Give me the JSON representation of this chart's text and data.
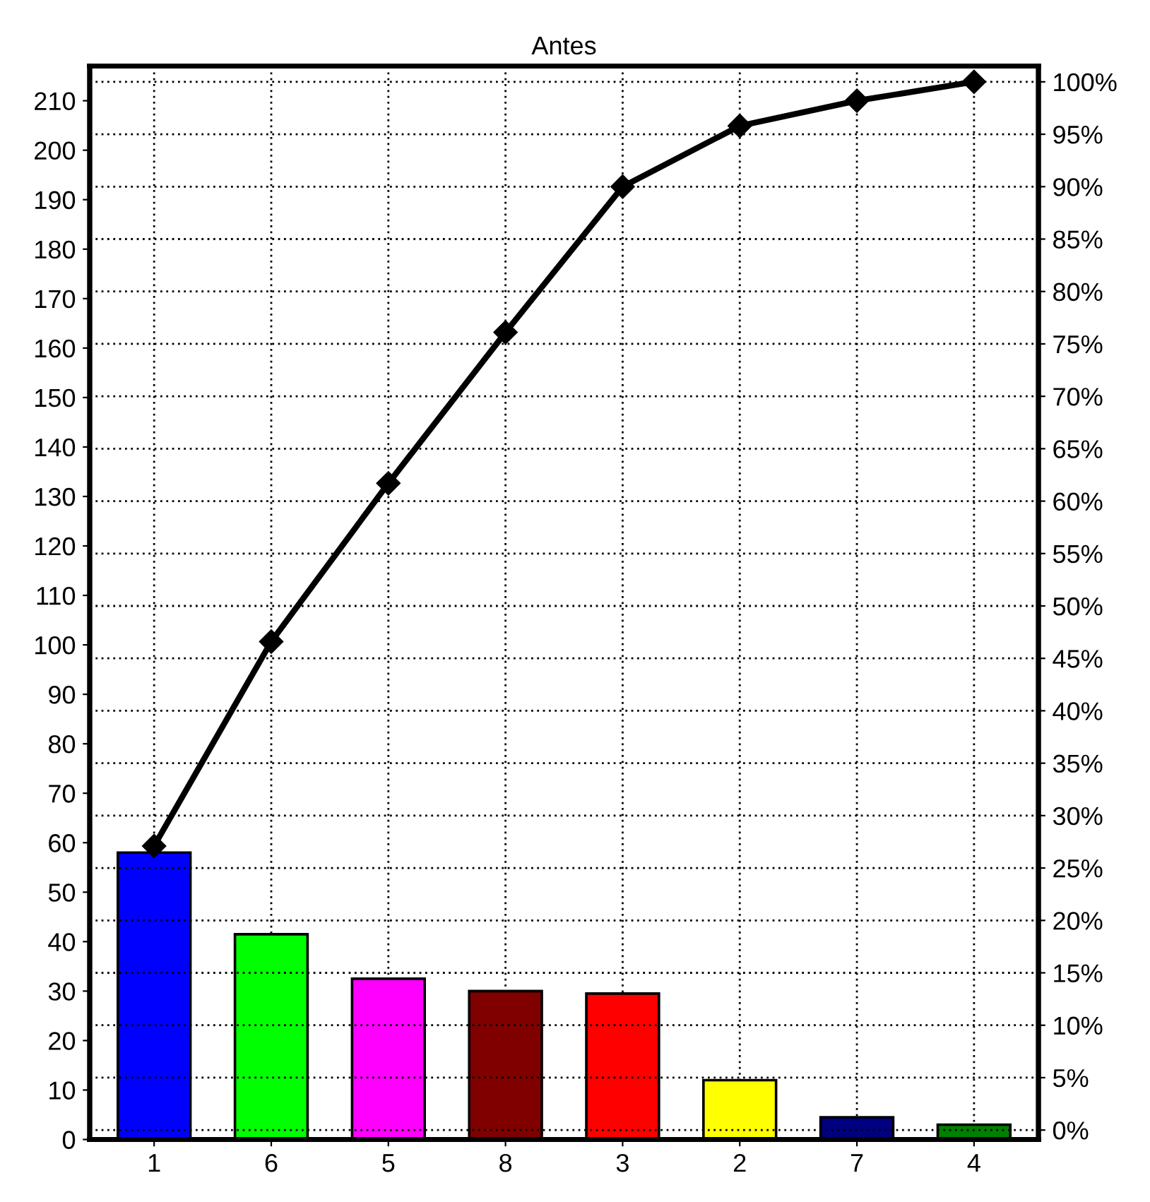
{
  "chart_data": {
    "type": "bar",
    "title": "Antes",
    "categories": [
      "1",
      "6",
      "5",
      "8",
      "3",
      "2",
      "7",
      "4"
    ],
    "series": [
      {
        "colors": [
          "#0000ff",
          "#00ff00",
          "#ff00ff",
          "#800000",
          "#ff0000",
          "#ffff00",
          "#000080",
          "#008000"
        ],
        "values": [
          58,
          41.5,
          32.5,
          30,
          29.5,
          12,
          4.5,
          3
        ]
      },
      {
        "type": "line",
        "axis": "y2",
        "color": "#000000",
        "marker": "diamond",
        "values": [
          27.1,
          46.6,
          61.7,
          76.1,
          90.0,
          95.8,
          98.2,
          100
        ]
      }
    ],
    "ylim": [
      0,
      217
    ],
    "yticks": [
      0,
      10,
      20,
      30,
      40,
      50,
      60,
      70,
      80,
      90,
      100,
      110,
      120,
      130,
      140,
      150,
      160,
      170,
      180,
      190,
      200,
      210
    ],
    "y2lim": [
      -0.9,
      101.5
    ],
    "y2ticks": [
      {
        "value": 0,
        "label": "0%"
      },
      {
        "value": 5,
        "label": "5%"
      },
      {
        "value": 10,
        "label": "10%"
      },
      {
        "value": 15,
        "label": "15%"
      },
      {
        "value": 20,
        "label": "20%"
      },
      {
        "value": 25,
        "label": "25%"
      },
      {
        "value": 30,
        "label": "30%"
      },
      {
        "value": 35,
        "label": "35%"
      },
      {
        "value": 40,
        "label": "40%"
      },
      {
        "value": 45,
        "label": "45%"
      },
      {
        "value": 50,
        "label": "50%"
      },
      {
        "value": 55,
        "label": "55%"
      },
      {
        "value": 60,
        "label": "60%"
      },
      {
        "value": 65,
        "label": "65%"
      },
      {
        "value": 70,
        "label": "70%"
      },
      {
        "value": 75,
        "label": "75%"
      },
      {
        "value": 80,
        "label": "80%"
      },
      {
        "value": 85,
        "label": "85%"
      },
      {
        "value": 90,
        "label": "90%"
      },
      {
        "value": 95,
        "label": "95%"
      },
      {
        "value": 100,
        "label": "100%"
      }
    ],
    "grid": true,
    "legend": false
  }
}
